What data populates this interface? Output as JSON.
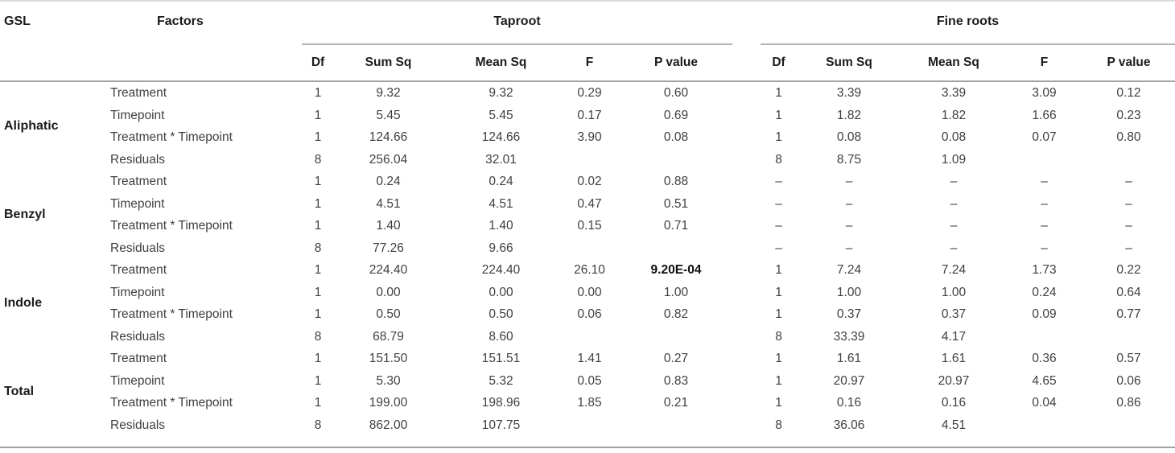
{
  "table": {
    "headers": {
      "gsl": "GSL",
      "factors": "Factors",
      "taproot": "Taproot",
      "fine_roots": "Fine roots",
      "sub_columns": [
        "Df",
        "Sum Sq",
        "Mean Sq",
        "F",
        "P value"
      ]
    },
    "groups": [
      {
        "gsl": "Aliphatic",
        "rows": [
          {
            "factor": "Treatment",
            "taproot": [
              "1",
              "9.32",
              "9.32",
              "0.29",
              "0.60"
            ],
            "fine_roots": [
              "1",
              "3.39",
              "3.39",
              "3.09",
              "0.12"
            ]
          },
          {
            "factor": "Timepoint",
            "taproot": [
              "1",
              "5.45",
              "5.45",
              "0.17",
              "0.69"
            ],
            "fine_roots": [
              "1",
              "1.82",
              "1.82",
              "1.66",
              "0.23"
            ]
          },
          {
            "factor": "Treatment * Timepoint",
            "taproot": [
              "1",
              "124.66",
              "124.66",
              "3.90",
              "0.08"
            ],
            "fine_roots": [
              "1",
              "0.08",
              "0.08",
              "0.07",
              "0.80"
            ]
          },
          {
            "factor": "Residuals",
            "taproot": [
              "8",
              "256.04",
              "32.01",
              "",
              ""
            ],
            "fine_roots": [
              "8",
              "8.75",
              "1.09",
              "",
              ""
            ]
          }
        ]
      },
      {
        "gsl": "Benzyl",
        "rows": [
          {
            "factor": "Treatment",
            "taproot": [
              "1",
              "0.24",
              "0.24",
              "0.02",
              "0.88"
            ],
            "fine_roots": [
              "–",
              "–",
              "–",
              "–",
              "–"
            ]
          },
          {
            "factor": "Timepoint",
            "taproot": [
              "1",
              "4.51",
              "4.51",
              "0.47",
              "0.51"
            ],
            "fine_roots": [
              "–",
              "–",
              "–",
              "–",
              "–"
            ]
          },
          {
            "factor": "Treatment * Timepoint",
            "taproot": [
              "1",
              "1.40",
              "1.40",
              "0.15",
              "0.71"
            ],
            "fine_roots": [
              "–",
              "–",
              "–",
              "–",
              "–"
            ]
          },
          {
            "factor": "Residuals",
            "taproot": [
              "8",
              "77.26",
              "9.66",
              "",
              ""
            ],
            "fine_roots": [
              "–",
              "–",
              "–",
              "–",
              "–"
            ]
          }
        ]
      },
      {
        "gsl": "Indole",
        "rows": [
          {
            "factor": "Treatment",
            "taproot": [
              "1",
              "224.40",
              "224.40",
              "26.10",
              "9.20E-04"
            ],
            "taproot_bold": [
              4
            ],
            "fine_roots": [
              "1",
              "7.24",
              "7.24",
              "1.73",
              "0.22"
            ]
          },
          {
            "factor": "Timepoint",
            "taproot": [
              "1",
              "0.00",
              "0.00",
              "0.00",
              "1.00"
            ],
            "fine_roots": [
              "1",
              "1.00",
              "1.00",
              "0.24",
              "0.64"
            ]
          },
          {
            "factor": "Treatment * Timepoint",
            "taproot": [
              "1",
              "0.50",
              "0.50",
              "0.06",
              "0.82"
            ],
            "fine_roots": [
              "1",
              "0.37",
              "0.37",
              "0.09",
              "0.77"
            ]
          },
          {
            "factor": "Residuals",
            "taproot": [
              "8",
              "68.79",
              "8.60",
              "",
              ""
            ],
            "fine_roots": [
              "8",
              "33.39",
              "4.17",
              "",
              ""
            ]
          }
        ]
      },
      {
        "gsl": "Total",
        "rows": [
          {
            "factor": "Treatment",
            "taproot": [
              "1",
              "151.50",
              "151.51",
              "1.41",
              "0.27"
            ],
            "fine_roots": [
              "1",
              "1.61",
              "1.61",
              "0.36",
              "0.57"
            ]
          },
          {
            "factor": "Timepoint",
            "taproot": [
              "1",
              "5.30",
              "5.32",
              "0.05",
              "0.83"
            ],
            "fine_roots": [
              "1",
              "20.97",
              "20.97",
              "4.65",
              "0.06"
            ]
          },
          {
            "factor": "Treatment * Timepoint",
            "taproot": [
              "1",
              "199.00",
              "198.96",
              "1.85",
              "0.21"
            ],
            "fine_roots": [
              "1",
              "0.16",
              "0.16",
              "0.04",
              "0.86"
            ]
          },
          {
            "factor": "Residuals",
            "taproot": [
              "8",
              "862.00",
              "107.75",
              "",
              ""
            ],
            "fine_roots": [
              "8",
              "36.06",
              "4.51",
              "",
              ""
            ]
          }
        ]
      }
    ]
  },
  "colors": {
    "text": "#3f3f3f",
    "heading_text": "#1b1b1b",
    "rule_light": "#dadada",
    "rule_medium": "#a3a3a3",
    "rule_spanner": "#b5b5b5"
  }
}
